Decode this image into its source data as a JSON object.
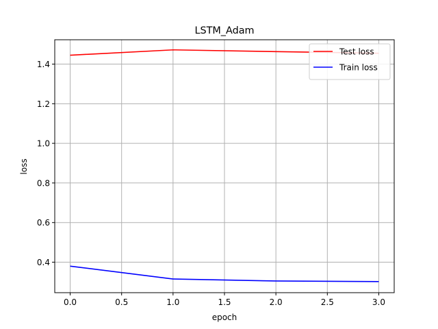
{
  "chart_data": {
    "type": "line",
    "title": "LSTM_Adam",
    "xlabel": "epoch",
    "ylabel": "loss",
    "x": [
      0,
      1,
      2,
      3
    ],
    "series": [
      {
        "name": "Test loss",
        "color": "#ff0000",
        "values": [
          1.445,
          1.472,
          1.463,
          1.455
        ]
      },
      {
        "name": "Train loss",
        "color": "#0000ff",
        "values": [
          0.38,
          0.315,
          0.305,
          0.302
        ]
      }
    ],
    "xlim": [
      -0.15,
      3.15
    ],
    "ylim": [
      0.246,
      1.523
    ],
    "xticks": [
      0.0,
      0.5,
      1.0,
      1.5,
      2.0,
      2.5,
      3.0
    ],
    "xtick_labels": [
      "0.0",
      "0.5",
      "1.0",
      "1.5",
      "2.0",
      "2.5",
      "3.0"
    ],
    "yticks": [
      0.4,
      0.6,
      0.8,
      1.0,
      1.2,
      1.4
    ],
    "ytick_labels": [
      "0.4",
      "0.6",
      "0.8",
      "1.0",
      "1.2",
      "1.4"
    ],
    "grid": true,
    "legend_position": "top-right"
  }
}
